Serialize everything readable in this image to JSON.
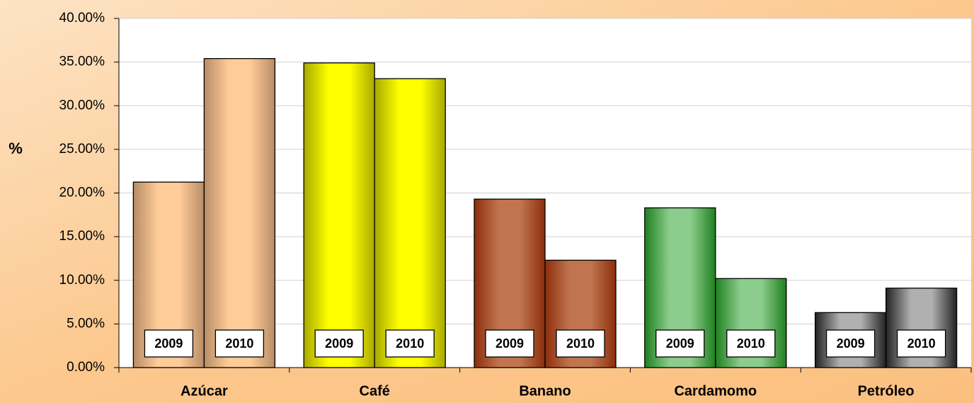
{
  "chart_data": {
    "type": "bar",
    "y_label": "%",
    "categories": [
      "Azúcar",
      "Café",
      "Banano",
      "Cardamomo",
      "Petróleo"
    ],
    "category_colors": [
      [
        "#b88c66",
        "#ffcc99"
      ],
      [
        "#a8a800",
        "#ffff00"
      ],
      [
        "#8c2e0a",
        "#c07550"
      ],
      [
        "#1f801f",
        "#8ccc8c"
      ],
      [
        "#222222",
        "#b0b0b0"
      ]
    ],
    "series": [
      {
        "name": "2009",
        "values": [
          21.25,
          34.9,
          19.3,
          18.3,
          6.3
        ]
      },
      {
        "name": "2010",
        "values": [
          35.4,
          33.1,
          12.3,
          10.2,
          9.1
        ]
      }
    ],
    "ylim": [
      0,
      40
    ],
    "yticks": [
      {
        "value": 0,
        "label": "0.00%"
      },
      {
        "value": 5,
        "label": "5.00%"
      },
      {
        "value": 10,
        "label": "10.00%"
      },
      {
        "value": 15,
        "label": "15.00%"
      },
      {
        "value": 20,
        "label": "20.00%"
      },
      {
        "value": 25,
        "label": "25.00%"
      },
      {
        "value": 30,
        "label": "30.00%"
      },
      {
        "value": 35,
        "label": "35.00%"
      },
      {
        "value": 40,
        "label": "40.00%"
      }
    ],
    "grid": true
  }
}
